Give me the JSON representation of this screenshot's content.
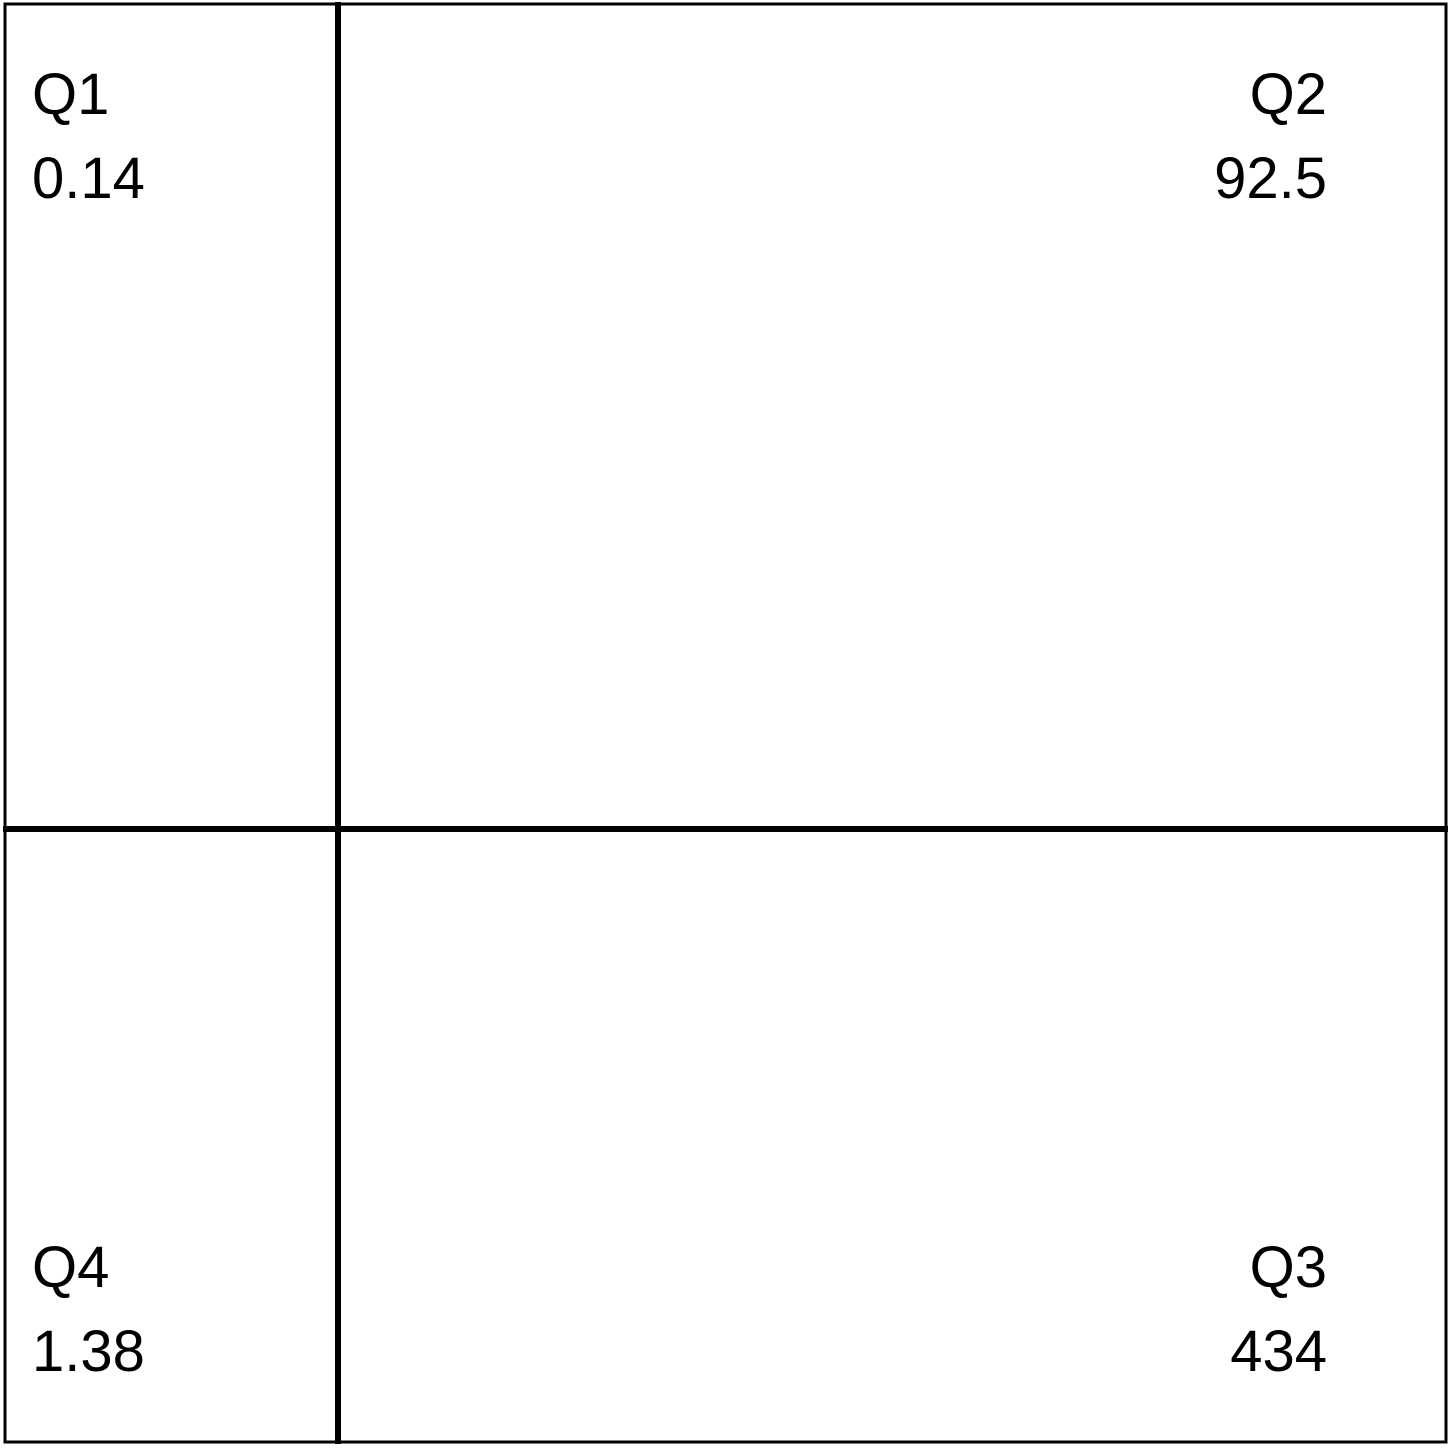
{
  "chart_data": {
    "type": "heatmap",
    "subtype": "flow-cytometry-quadrant-density",
    "title": "",
    "xlabel": "",
    "ylabel": "",
    "color_scale": [
      "#0000ff",
      "#0050ff",
      "#00c8ff",
      "#00ffff",
      "#00ff40",
      "#7fff00",
      "#ffff00",
      "#ff8000",
      "#ff1e00"
    ],
    "quadrants": [
      {
        "name": "Q1",
        "value": "0.14"
      },
      {
        "name": "Q2",
        "value": "92.5"
      },
      {
        "name": "Q3",
        "value": "434"
      },
      {
        "name": "Q4",
        "value": "1.38"
      }
    ],
    "border_color": "#000000",
    "gate_color": "#000000"
  }
}
